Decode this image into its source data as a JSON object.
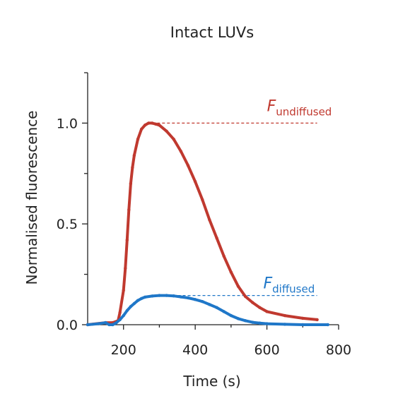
{
  "chart_data": {
    "type": "scatter",
    "title": "Intact LUVs",
    "xlabel": "Time (s)",
    "ylabel": "Normalised fluorescence",
    "xlim": [
      100,
      800
    ],
    "ylim": [
      0,
      1.25
    ],
    "x_ticks": [
      200,
      400,
      600,
      800
    ],
    "x_tick_labels": [
      "200",
      "400",
      "600",
      "800"
    ],
    "y_ticks": [
      0,
      0.5,
      1.0
    ],
    "y_tick_labels": [
      "0.0",
      "0.5",
      "1.0"
    ],
    "y_minor_ticks": [
      0.25,
      0.75,
      1.25
    ],
    "grid": false,
    "legend": "none",
    "series": [
      {
        "color": "#c0392f",
        "x": [
          100,
          150,
          170,
          185,
          190,
          200,
          205,
          210,
          215,
          220,
          225,
          230,
          240,
          250,
          260,
          270,
          280,
          290,
          300,
          320,
          340,
          360,
          380,
          400,
          420,
          440,
          460,
          480,
          500,
          520,
          540,
          560,
          580,
          600,
          650,
          700,
          740
        ],
        "y": [
          0.0,
          0.01,
          0.01,
          0.02,
          0.06,
          0.17,
          0.28,
          0.42,
          0.57,
          0.7,
          0.78,
          0.84,
          0.92,
          0.97,
          0.99,
          1.0,
          1.0,
          0.995,
          0.99,
          0.96,
          0.92,
          0.86,
          0.79,
          0.71,
          0.62,
          0.52,
          0.43,
          0.34,
          0.26,
          0.19,
          0.14,
          0.11,
          0.085,
          0.065,
          0.045,
          0.032,
          0.025
        ]
      },
      {
        "color": "#1f77c8",
        "x": [
          100,
          130,
          150,
          160,
          170,
          180,
          190,
          200,
          210,
          220,
          230,
          240,
          250,
          260,
          280,
          300,
          320,
          340,
          360,
          380,
          400,
          420,
          440,
          460,
          480,
          500,
          520,
          540,
          560,
          580,
          600,
          650,
          700,
          770
        ],
        "y": [
          0.0,
          0.005,
          0.01,
          0.0,
          0.0,
          0.01,
          0.025,
          0.045,
          0.07,
          0.09,
          0.105,
          0.12,
          0.13,
          0.137,
          0.142,
          0.145,
          0.145,
          0.143,
          0.138,
          0.133,
          0.125,
          0.115,
          0.1,
          0.085,
          0.065,
          0.045,
          0.03,
          0.02,
          0.012,
          0.008,
          0.005,
          0.002,
          0.0,
          0.0
        ]
      }
    ],
    "reference_lines": [
      {
        "y": 1.0,
        "x_start": 280,
        "x_end": 740,
        "color": "#c0392f",
        "style": "dashed"
      },
      {
        "y": 0.145,
        "x_start": 310,
        "x_end": 740,
        "color": "#1f77c8",
        "style": "dashed"
      }
    ],
    "annotations": [
      {
        "main": "F",
        "sub": "undiffused",
        "color": "#c0392f",
        "x": 600,
        "y": 1.06
      },
      {
        "main": "F",
        "sub": "diffused",
        "color": "#1f77c8",
        "x": 590,
        "y": 0.18
      }
    ]
  }
}
